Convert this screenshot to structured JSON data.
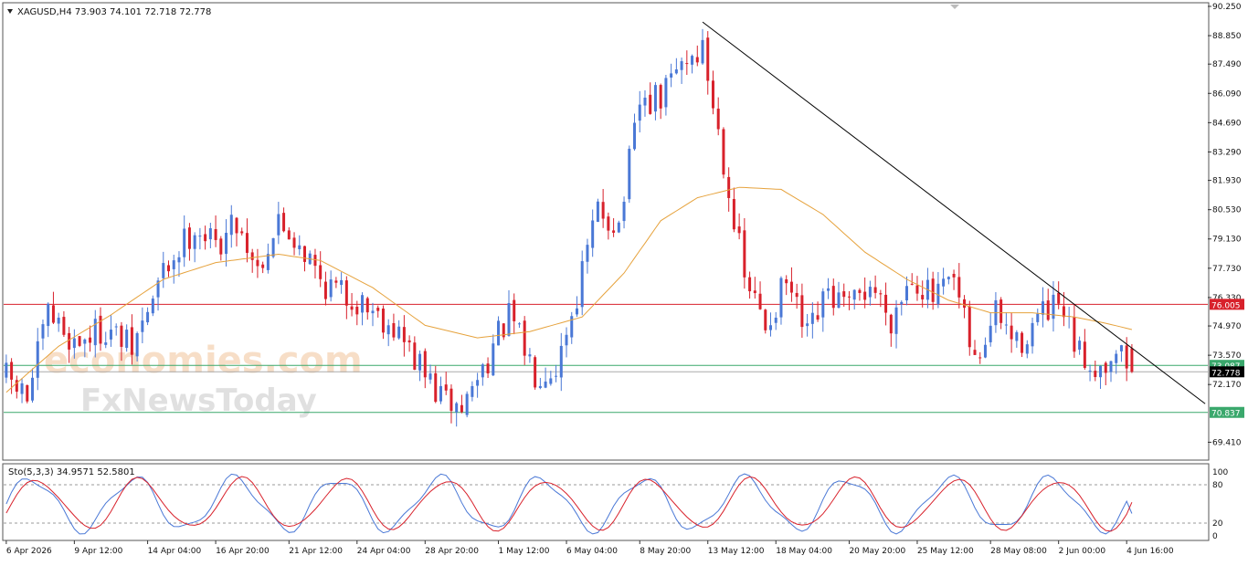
{
  "header": {
    "symbol_line": "XAGUSD,H4  73.903 74.101 72.718 72.778",
    "indicator_line": "Sto(5,3,3) 34.9571 52.5801"
  },
  "watermark": {
    "brand_top": "economies.com",
    "brand_bottom": "FxNewsToday"
  },
  "colors": {
    "bull_candle": "#4a78d6",
    "bear_candle": "#d8212b",
    "ma_line": "#e6a23c",
    "trendline": "#000000",
    "resistance_line": "#d8212b",
    "support_line": "#3aa86c",
    "sto_main": "#4a78d6",
    "sto_signal": "#d8212b"
  },
  "chart_data": [
    {
      "type": "candlestick",
      "name": "XAGUSD,H4",
      "ylim": [
        68.6,
        90.38
      ],
      "y_ticks": [
        "90.250",
        "88.850",
        "87.490",
        "86.090",
        "84.690",
        "83.290",
        "81.930",
        "80.530",
        "79.130",
        "77.730",
        "76.330",
        "74.970",
        "73.570",
        "72.170",
        "69.410"
      ],
      "x_ticks": [
        "6 Apr 2026",
        "9 Apr 12:00",
        "14 Apr 04:00",
        "16 Apr 20:00",
        "21 Apr 12:00",
        "24 Apr 04:00",
        "28 Apr 20:00",
        "1 May 12:00",
        "6 May 04:00",
        "8 May 20:00",
        "13 May 12:00",
        "18 May 04:00",
        "20 May 20:00",
        "25 May 12:00",
        "28 May 08:00",
        "2 Jun 00:00",
        "4 Jun 16:00"
      ],
      "close_points": [
        [
          0,
          72.5
        ],
        [
          4,
          71.5
        ],
        [
          8,
          75.5
        ],
        [
          13,
          74.2
        ],
        [
          19,
          74.9
        ],
        [
          24,
          73.8
        ],
        [
          30,
          77.5
        ],
        [
          36,
          79.8
        ],
        [
          40,
          78.8
        ],
        [
          44,
          80.0
        ],
        [
          48,
          77.8
        ],
        [
          52,
          79.9
        ],
        [
          56,
          79.0
        ],
        [
          60,
          77.2
        ],
        [
          64,
          76.5
        ],
        [
          69,
          76.0
        ],
        [
          74,
          75.0
        ],
        [
          79,
          73.0
        ],
        [
          83,
          71.5
        ],
        [
          87,
          71.0
        ],
        [
          92,
          73.5
        ],
        [
          96,
          75.4
        ],
        [
          101,
          72.8
        ],
        [
          105,
          73.1
        ],
        [
          109,
          76.5
        ],
        [
          113,
          80.5
        ],
        [
          117,
          79.8
        ],
        [
          121,
          85.5
        ],
        [
          125,
          85.8
        ],
        [
          129,
          87.6
        ],
        [
          133,
          88.2
        ],
        [
          137,
          83.0
        ],
        [
          141,
          77.2
        ],
        [
          145,
          75.0
        ],
        [
          149,
          77.0
        ],
        [
          153,
          74.3
        ],
        [
          157,
          76.5
        ],
        [
          161,
          75.7
        ],
        [
          165,
          77.0
        ],
        [
          169,
          75.4
        ],
        [
          173,
          77.5
        ],
        [
          177,
          76.2
        ],
        [
          181,
          77.0
        ],
        [
          185,
          73.1
        ],
        [
          189,
          75.6
        ],
        [
          193,
          74.0
        ],
        [
          197,
          75.3
        ],
        [
          201,
          75.8
        ],
        [
          205,
          73.5
        ],
        [
          209,
          73.0
        ],
        [
          212,
          74.0
        ],
        [
          215,
          72.78
        ]
      ],
      "moving_average": [
        [
          0,
          71.8
        ],
        [
          10,
          74.0
        ],
        [
          20,
          75.5
        ],
        [
          30,
          77.2
        ],
        [
          40,
          78.0
        ],
        [
          52,
          78.4
        ],
        [
          60,
          78.1
        ],
        [
          70,
          76.8
        ],
        [
          80,
          75.0
        ],
        [
          90,
          74.4
        ],
        [
          100,
          74.7
        ],
        [
          110,
          75.4
        ],
        [
          118,
          77.5
        ],
        [
          125,
          80.0
        ],
        [
          132,
          81.1
        ],
        [
          140,
          81.6
        ],
        [
          148,
          81.5
        ],
        [
          156,
          80.3
        ],
        [
          164,
          78.5
        ],
        [
          172,
          77.2
        ],
        [
          180,
          76.2
        ],
        [
          188,
          75.6
        ],
        [
          196,
          75.6
        ],
        [
          204,
          75.4
        ],
        [
          210,
          75.1
        ],
        [
          215,
          74.8
        ]
      ],
      "trendline": {
        "from": [
          133,
          89.5
        ],
        "to": [
          229,
          71.25
        ]
      },
      "horizontal_levels": [
        {
          "label": "76.005",
          "value": 76.005,
          "role": "resistance"
        },
        {
          "label": "73.087",
          "value": 73.087,
          "role": "support"
        },
        {
          "label": "70.837",
          "value": 70.837,
          "role": "support"
        }
      ],
      "last_price": {
        "label": "72.778",
        "value": 72.778
      }
    },
    {
      "type": "line",
      "name": "Sto(5,3,3)",
      "ylim": [
        0,
        100
      ],
      "y_ticks": [
        "100",
        "80",
        "20",
        "0"
      ],
      "levels": [
        80,
        20
      ],
      "series": [
        {
          "name": "main",
          "value_last": 34.9571
        },
        {
          "name": "signal",
          "value_last": 52.5801
        }
      ]
    }
  ]
}
